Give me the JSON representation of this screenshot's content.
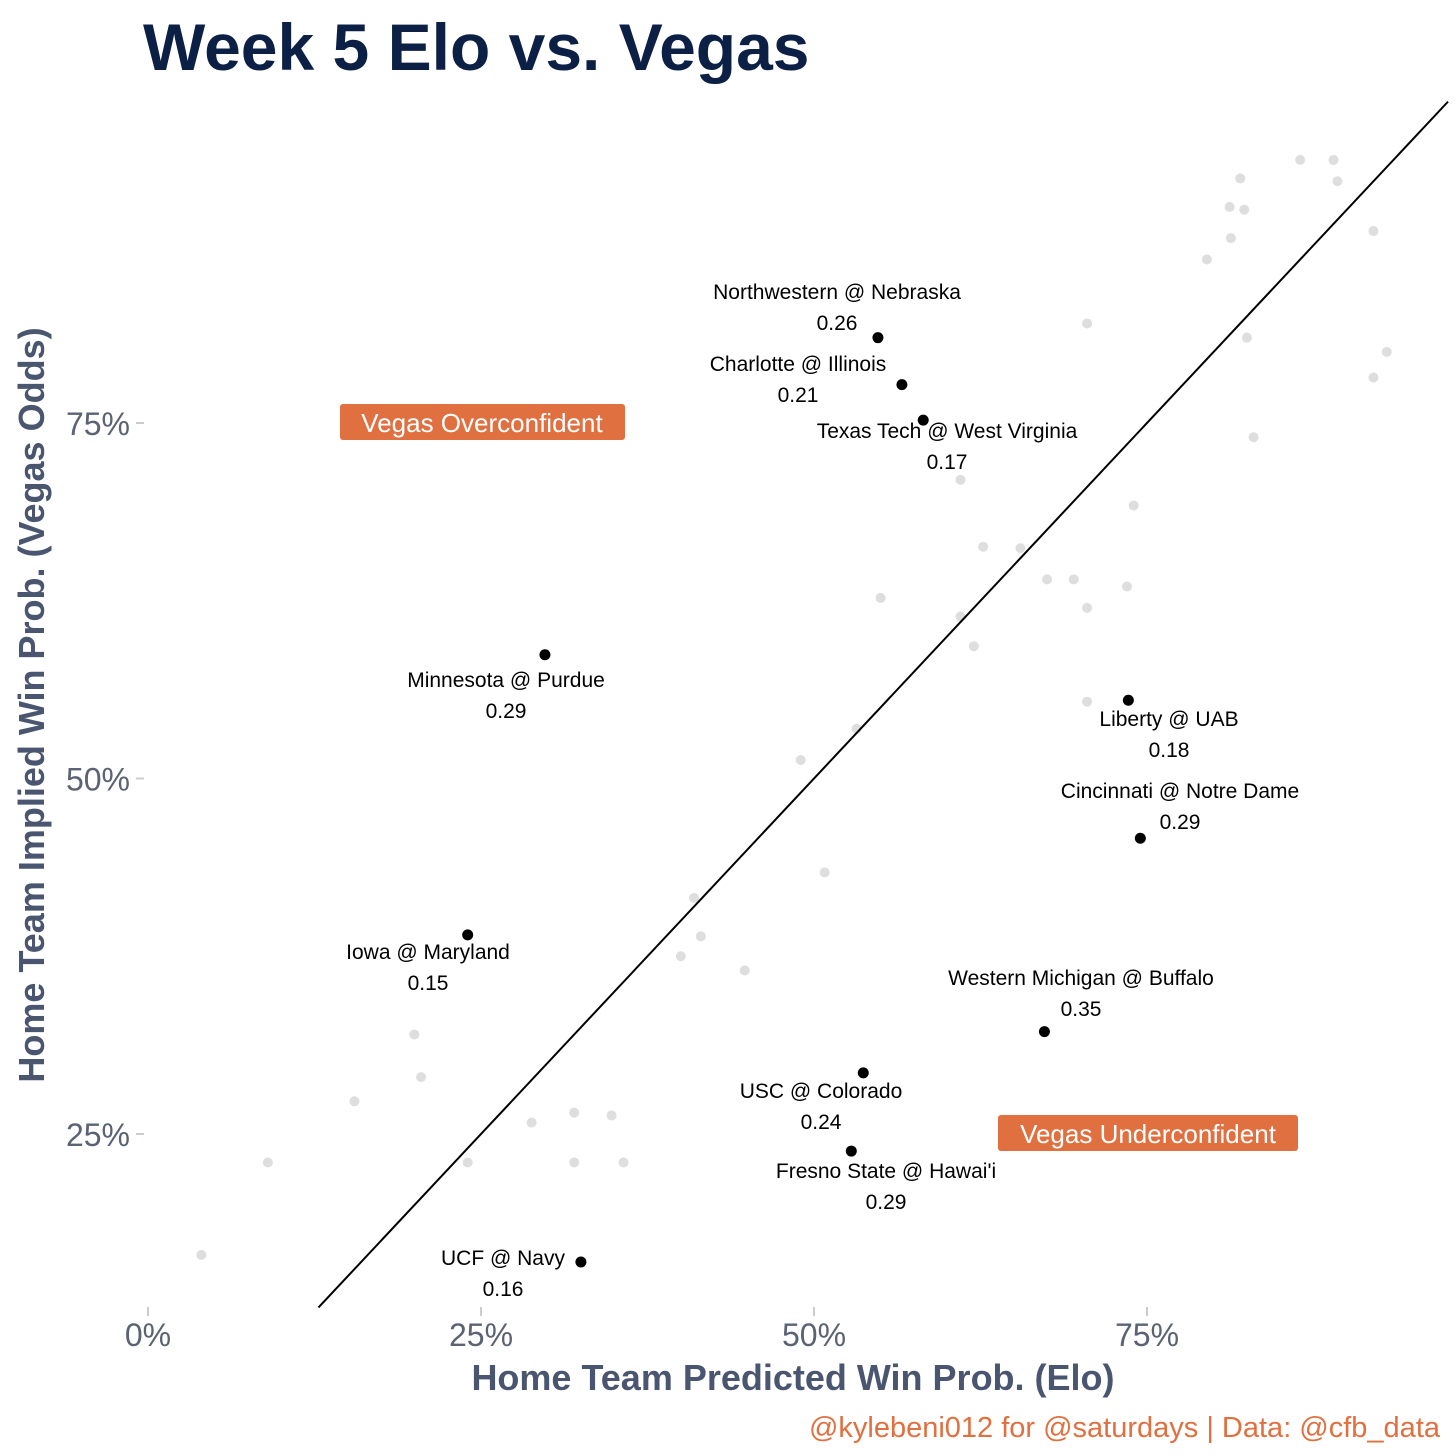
{
  "chart_data": {
    "type": "scatter",
    "title": "Week 5 Elo vs. Vegas",
    "xlabel": "Home Team Predicted Win Prob. (Elo)",
    "ylabel": "Home Team Implied Win Prob. (Vegas Odds)",
    "xlim": [
      -0.02,
      0.98
    ],
    "ylim": [
      0.12,
      0.96
    ],
    "x_ticks": [
      {
        "value": 0,
        "label": "0%"
      },
      {
        "value": 0.25,
        "label": "25%"
      },
      {
        "value": 0.5,
        "label": "50%"
      },
      {
        "value": 0.75,
        "label": "75%"
      }
    ],
    "y_ticks": [
      {
        "value": 0.25,
        "label": "25%"
      },
      {
        "value": 0.5,
        "label": "50%"
      },
      {
        "value": 0.75,
        "label": "75%"
      }
    ],
    "reference_line": {
      "type": "identity",
      "from": 0.128,
      "to": 0.976
    },
    "grid": false,
    "caption": "@kylebeni012 for @saturdays | Data: @cfb_data",
    "background_points": [
      [
        0.04,
        0.165
      ],
      [
        0.09,
        0.23
      ],
      [
        0.155,
        0.273
      ],
      [
        0.2,
        0.32
      ],
      [
        0.205,
        0.29
      ],
      [
        0.24,
        0.23
      ],
      [
        0.288,
        0.258
      ],
      [
        0.32,
        0.265
      ],
      [
        0.32,
        0.23
      ],
      [
        0.348,
        0.263
      ],
      [
        0.357,
        0.23
      ],
      [
        0.4,
        0.375
      ],
      [
        0.41,
        0.416
      ],
      [
        0.415,
        0.389
      ],
      [
        0.448,
        0.365
      ],
      [
        0.49,
        0.513
      ],
      [
        0.508,
        0.434
      ],
      [
        0.532,
        0.535
      ],
      [
        0.55,
        0.627
      ],
      [
        0.61,
        0.71
      ],
      [
        0.61,
        0.614
      ],
      [
        0.62,
        0.593
      ],
      [
        0.627,
        0.663
      ],
      [
        0.655,
        0.662
      ],
      [
        0.675,
        0.64
      ],
      [
        0.695,
        0.64
      ],
      [
        0.705,
        0.62
      ],
      [
        0.705,
        0.554
      ],
      [
        0.705,
        0.82
      ],
      [
        0.735,
        0.635
      ],
      [
        0.74,
        0.692
      ],
      [
        0.795,
        0.865
      ],
      [
        0.812,
        0.902
      ],
      [
        0.813,
        0.88
      ],
      [
        0.82,
        0.922
      ],
      [
        0.823,
        0.9
      ],
      [
        0.825,
        0.81
      ],
      [
        0.83,
        0.74
      ],
      [
        0.865,
        0.935
      ],
      [
        0.89,
        0.935
      ],
      [
        0.893,
        0.92
      ],
      [
        0.92,
        0.885
      ],
      [
        0.92,
        0.782
      ],
      [
        0.93,
        0.8
      ]
    ],
    "highlighted_games": [
      {
        "game": "Northwestern @ Nebraska",
        "value": "0.26",
        "x": 0.548,
        "y": 0.81
      },
      {
        "game": "Charlotte @ Illinois",
        "value": "0.21",
        "x": 0.566,
        "y": 0.777
      },
      {
        "game": "Texas Tech @ West Virginia",
        "value": "0.17",
        "x": 0.582,
        "y": 0.752
      },
      {
        "game": "Minnesota @ Purdue",
        "value": "0.29",
        "x": 0.298,
        "y": 0.587
      },
      {
        "game": "Liberty @ UAB",
        "value": "0.18",
        "x": 0.736,
        "y": 0.555
      },
      {
        "game": "Cincinnati @ Notre Dame",
        "value": "0.29",
        "x": 0.745,
        "y": 0.458
      },
      {
        "game": "Iowa @ Maryland",
        "value": "0.15",
        "x": 0.24,
        "y": 0.39
      },
      {
        "game": "Western Michigan @ Buffalo",
        "value": "0.35",
        "x": 0.673,
        "y": 0.322
      },
      {
        "game": "USC @ Colorado",
        "value": "0.24",
        "x": 0.537,
        "y": 0.293
      },
      {
        "game": "Fresno State @ Hawai'i",
        "value": "0.29",
        "x": 0.528,
        "y": 0.238
      },
      {
        "game": "UCF @ Navy",
        "value": "0.16",
        "x": 0.325,
        "y": 0.16
      }
    ],
    "region_labels": [
      {
        "text": "Vegas Overconfident",
        "color": "#e07040"
      },
      {
        "text": "Vegas Underconfident",
        "color": "#e07040"
      }
    ]
  }
}
